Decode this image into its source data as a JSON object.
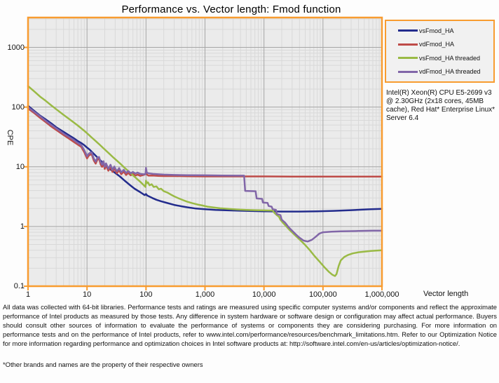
{
  "title": "Performance vs. Vector length: Fmod function",
  "axes": {
    "y_label": "CPE",
    "x_label": "Vector length",
    "x_ticks": [
      {
        "v": 1,
        "label": "1"
      },
      {
        "v": 10,
        "label": "10"
      },
      {
        "v": 100,
        "label": "100"
      },
      {
        "v": 1000,
        "label": "1,000"
      },
      {
        "v": 10000,
        "label": "10,000"
      },
      {
        "v": 100000,
        "label": "100,000"
      },
      {
        "v": 1000000,
        "label": "1,000,000"
      }
    ],
    "y_ticks": [
      {
        "v": 0.1,
        "label": "0.1"
      },
      {
        "v": 1,
        "label": "1"
      },
      {
        "v": 10,
        "label": "10"
      },
      {
        "v": 100,
        "label": "100"
      },
      {
        "v": 1000,
        "label": "1000"
      }
    ]
  },
  "legend": {
    "items": [
      {
        "label": "vsFmod_HA",
        "color": "#232c8d"
      },
      {
        "label": "vdFmod_HA",
        "color": "#be4b48"
      },
      {
        "label": "vsFmod_HA threaded",
        "color": "#9aba45"
      },
      {
        "label": "vdFmod_HA threaded",
        "color": "#8166a8"
      }
    ]
  },
  "annotation": "Intel(R) Xeon(R) CPU E5-2699 v3 @ 2.30GHz (2x18 cores, 45MB cache), Red Hat* Enterprise Linux* Server 6.4",
  "footer": {
    "disclaimer": "All data was collected with 64-bit libraries. Performance tests and ratings are measured using specific computer systems and/or components and reflect the approximate performance of Intel products as measured by those tests. Any difference in system hardware or software design or configuration may affect actual performance. Buyers should consult other sources of information to evaluate the performance of systems or components they are considering purchasing. For more information on performance tests and on the performance of Intel products, refer to www.intel.com/performance/resources/benchmark_limitations.htm.  Refer to our Optimization Notice for more information regarding performance and optimization choices in Intel software products at: http://software.intel.com/en-us/articles/optimization-notice/.",
    "trademark": "*Other brands and names are the property of their respective owners"
  },
  "style_colors": {
    "frame_orange": "#f89c30",
    "plot_background": "#ebebeb",
    "grid_minor": "#d9d9d9",
    "grid_major": "#a6a6a6"
  },
  "chart_data": {
    "type": "line",
    "x_scale": "log",
    "y_scale": "log",
    "xlim": [
      1,
      1000000
    ],
    "ylim": [
      0.1,
      3162
    ],
    "xlabel": "Vector length",
    "ylabel": "CPE",
    "grid": true,
    "legend_position": "top-right",
    "series": [
      {
        "name": "vsFmod_HA",
        "color": "#232c8d",
        "points": [
          [
            1,
            105
          ],
          [
            1.3,
            85
          ],
          [
            1.6,
            72
          ],
          [
            2,
            62
          ],
          [
            2.5,
            53
          ],
          [
            3,
            46
          ],
          [
            4,
            38.5
          ],
          [
            5,
            33.5
          ],
          [
            6,
            30
          ],
          [
            7,
            27
          ],
          [
            8,
            25
          ],
          [
            9,
            23
          ],
          [
            10,
            21
          ],
          [
            11,
            19.5
          ],
          [
            13,
            16.5
          ],
          [
            16,
            13.5
          ],
          [
            20,
            10.8
          ],
          [
            25,
            9.0
          ],
          [
            30,
            7.9
          ],
          [
            36,
            6.9
          ],
          [
            44,
            5.8
          ],
          [
            54,
            4.9
          ],
          [
            64,
            4.3
          ],
          [
            80,
            3.75
          ],
          [
            95,
            3.35
          ],
          [
            100,
            3.5
          ],
          [
            105,
            3.3
          ],
          [
            128,
            3.0
          ],
          [
            150,
            2.8
          ],
          [
            180,
            2.65
          ],
          [
            220,
            2.5
          ],
          [
            300,
            2.3
          ],
          [
            400,
            2.18
          ],
          [
            500,
            2.1
          ],
          [
            700,
            2.0
          ],
          [
            1000,
            1.95
          ],
          [
            1500,
            1.9
          ],
          [
            2500,
            1.86
          ],
          [
            5000,
            1.83
          ],
          [
            10000,
            1.8
          ],
          [
            20000,
            1.78
          ],
          [
            40000,
            1.78
          ],
          [
            80000,
            1.8
          ],
          [
            150000,
            1.83
          ],
          [
            300000,
            1.88
          ],
          [
            600000,
            1.94
          ],
          [
            1000000,
            1.97
          ]
        ]
      },
      {
        "name": "vdFmod_HA",
        "color": "#be4b48",
        "points": [
          [
            1,
            95
          ],
          [
            1.3,
            78
          ],
          [
            1.6,
            66
          ],
          [
            2,
            56
          ],
          [
            2.5,
            47
          ],
          [
            3,
            41.5
          ],
          [
            4,
            34
          ],
          [
            5,
            29.5
          ],
          [
            6,
            26
          ],
          [
            7,
            23.5
          ],
          [
            8,
            21.5
          ],
          [
            9,
            17.5
          ],
          [
            10,
            13.8
          ],
          [
            10.5,
            15
          ],
          [
            11,
            15.8
          ],
          [
            12,
            16.2
          ],
          [
            13,
            12.8
          ],
          [
            14,
            11.3
          ],
          [
            15,
            13.2
          ],
          [
            16,
            13.6
          ],
          [
            17,
            11
          ],
          [
            18,
            10
          ],
          [
            19,
            11.5
          ],
          [
            20,
            9.2
          ],
          [
            21,
            10.6
          ],
          [
            23,
            8.6
          ],
          [
            25,
            10
          ],
          [
            27,
            8.2
          ],
          [
            29,
            9.4
          ],
          [
            32,
            7.8
          ],
          [
            35,
            8.8
          ],
          [
            38,
            7.5
          ],
          [
            42,
            8.3
          ],
          [
            46,
            7.3
          ],
          [
            50,
            7.9
          ],
          [
            55,
            7.2
          ],
          [
            60,
            7.6
          ],
          [
            66,
            7.1
          ],
          [
            72,
            7.4
          ],
          [
            80,
            7.05
          ],
          [
            90,
            7.3
          ],
          [
            100,
            7.6
          ],
          [
            110,
            7.1
          ],
          [
            130,
            7.15
          ],
          [
            160,
            7.05
          ],
          [
            200,
            7.0
          ],
          [
            300,
            7.0
          ],
          [
            500,
            6.95
          ],
          [
            1000,
            6.9
          ],
          [
            3000,
            6.9
          ],
          [
            10000,
            6.9
          ],
          [
            30000,
            6.87
          ],
          [
            100000,
            6.85
          ],
          [
            300000,
            6.85
          ],
          [
            1000000,
            6.85
          ]
        ]
      },
      {
        "name": "vsFmod_HA threaded",
        "color": "#9aba45",
        "points": [
          [
            1,
            225
          ],
          [
            1.3,
            180
          ],
          [
            1.6,
            150
          ],
          [
            2,
            127
          ],
          [
            2.5,
            106
          ],
          [
            3,
            92
          ],
          [
            4,
            74
          ],
          [
            5,
            63
          ],
          [
            6,
            55
          ],
          [
            7,
            49
          ],
          [
            8,
            44
          ],
          [
            9,
            40
          ],
          [
            10,
            36.5
          ],
          [
            12,
            31
          ],
          [
            14,
            27
          ],
          [
            16,
            24
          ],
          [
            20,
            19.5
          ],
          [
            24,
            16.5
          ],
          [
            28,
            14.3
          ],
          [
            32,
            12.7
          ],
          [
            38,
            10.9
          ],
          [
            44,
            9.5
          ],
          [
            52,
            8.2
          ],
          [
            60,
            7.2
          ],
          [
            70,
            6.3
          ],
          [
            80,
            5.6
          ],
          [
            90,
            5.0
          ],
          [
            98,
            4.6
          ],
          [
            100,
            5.85
          ],
          [
            103,
            5.3
          ],
          [
            108,
            5.5
          ],
          [
            115,
            4.9
          ],
          [
            125,
            5.1
          ],
          [
            135,
            4.6
          ],
          [
            150,
            4.7
          ],
          [
            165,
            4.2
          ],
          [
            180,
            4.3
          ],
          [
            200,
            3.9
          ],
          [
            230,
            3.7
          ],
          [
            260,
            3.45
          ],
          [
            300,
            3.2
          ],
          [
            360,
            2.95
          ],
          [
            430,
            2.75
          ],
          [
            500,
            2.6
          ],
          [
            620,
            2.45
          ],
          [
            750,
            2.33
          ],
          [
            900,
            2.25
          ],
          [
            1100,
            2.15
          ],
          [
            1400,
            2.08
          ],
          [
            1800,
            2.02
          ],
          [
            2500,
            1.97
          ],
          [
            3500,
            1.93
          ],
          [
            5000,
            1.9
          ],
          [
            7000,
            1.88
          ],
          [
            10000,
            1.86
          ],
          [
            14000,
            1.85
          ],
          [
            15000,
            1.7
          ],
          [
            16500,
            1.55
          ],
          [
            18000,
            1.45
          ],
          [
            19000,
            1.3
          ],
          [
            21000,
            1.15
          ],
          [
            24000,
            1.0
          ],
          [
            27000,
            0.88
          ],
          [
            31000,
            0.77
          ],
          [
            36000,
            0.67
          ],
          [
            42000,
            0.58
          ],
          [
            50000,
            0.49
          ],
          [
            60000,
            0.4
          ],
          [
            72000,
            0.32
          ],
          [
            87000,
            0.26
          ],
          [
            105000,
            0.21
          ],
          [
            125000,
            0.175
          ],
          [
            145000,
            0.155
          ],
          [
            160000,
            0.148
          ],
          [
            170000,
            0.16
          ],
          [
            185000,
            0.22
          ],
          [
            200000,
            0.27
          ],
          [
            230000,
            0.31
          ],
          [
            270000,
            0.335
          ],
          [
            320000,
            0.355
          ],
          [
            400000,
            0.37
          ],
          [
            500000,
            0.38
          ],
          [
            650000,
            0.39
          ],
          [
            800000,
            0.395
          ],
          [
            1000000,
            0.4
          ]
        ]
      },
      {
        "name": "vdFmod_HA threaded",
        "color": "#8166a8",
        "points": [
          [
            1,
            100
          ],
          [
            1.3,
            82
          ],
          [
            1.6,
            70
          ],
          [
            2,
            59
          ],
          [
            2.5,
            50
          ],
          [
            3,
            44
          ],
          [
            4,
            36
          ],
          [
            5,
            31.5
          ],
          [
            6,
            28
          ],
          [
            7,
            25
          ],
          [
            8,
            23
          ],
          [
            9,
            19
          ],
          [
            10,
            15
          ],
          [
            10.5,
            16.2
          ],
          [
            11,
            17
          ],
          [
            12,
            17.4
          ],
          [
            13,
            13.8
          ],
          [
            14,
            12.2
          ],
          [
            15,
            14.2
          ],
          [
            16,
            14.6
          ],
          [
            17,
            12
          ],
          [
            18,
            10.8
          ],
          [
            19,
            12.4
          ],
          [
            20,
            10
          ],
          [
            21,
            11.4
          ],
          [
            23,
            9.3
          ],
          [
            25,
            10.8
          ],
          [
            27,
            8.9
          ],
          [
            29,
            10.1
          ],
          [
            32,
            8.4
          ],
          [
            35,
            9.5
          ],
          [
            38,
            8.1
          ],
          [
            42,
            8.9
          ],
          [
            46,
            7.9
          ],
          [
            50,
            8.5
          ],
          [
            55,
            7.8
          ],
          [
            60,
            8.2
          ],
          [
            66,
            7.7
          ],
          [
            72,
            8.0
          ],
          [
            80,
            7.6
          ],
          [
            90,
            7.5
          ],
          [
            98,
            7.5
          ],
          [
            100,
            9.6
          ],
          [
            103,
            8.0
          ],
          [
            110,
            7.8
          ],
          [
            130,
            7.6
          ],
          [
            160,
            7.5
          ],
          [
            200,
            7.4
          ],
          [
            300,
            7.3
          ],
          [
            500,
            7.25
          ],
          [
            1000,
            7.2
          ],
          [
            2000,
            7.15
          ],
          [
            3500,
            7.1
          ],
          [
            4600,
            7.1
          ],
          [
            4800,
            3.95
          ],
          [
            7200,
            3.9
          ],
          [
            7500,
            2.95
          ],
          [
            9300,
            2.9
          ],
          [
            9600,
            2.52
          ],
          [
            11500,
            2.48
          ],
          [
            12000,
            2.2
          ],
          [
            13500,
            2.15
          ],
          [
            14000,
            1.95
          ],
          [
            16000,
            1.9
          ],
          [
            16500,
            1.62
          ],
          [
            19000,
            1.55
          ],
          [
            20000,
            1.3
          ],
          [
            23000,
            1.15
          ],
          [
            26000,
            0.98
          ],
          [
            30000,
            0.85
          ],
          [
            35000,
            0.73
          ],
          [
            40000,
            0.65
          ],
          [
            47000,
            0.58
          ],
          [
            55000,
            0.56
          ],
          [
            65000,
            0.6
          ],
          [
            75000,
            0.67
          ],
          [
            87000,
            0.76
          ],
          [
            100000,
            0.8
          ],
          [
            140000,
            0.82
          ],
          [
            200000,
            0.83
          ],
          [
            400000,
            0.84
          ],
          [
            700000,
            0.85
          ],
          [
            1000000,
            0.85
          ]
        ]
      }
    ]
  }
}
